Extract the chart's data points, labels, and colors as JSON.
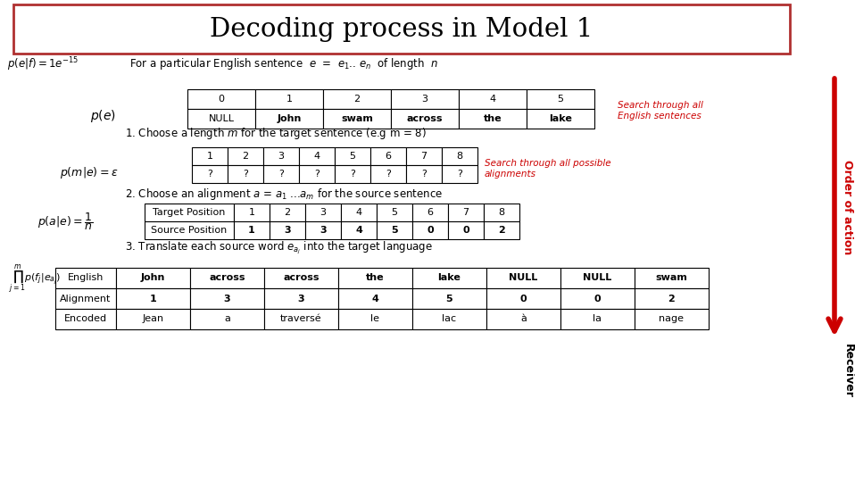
{
  "title": "Decoding process in Model 1",
  "title_border_color": "#b03030",
  "bg_color": "#ffffff",
  "red_color": "#cc0000",
  "table1_header": [
    "0",
    "1",
    "2",
    "3",
    "4",
    "5"
  ],
  "table1_row": [
    "NULL",
    "John",
    "swam",
    "across",
    "the",
    "lake"
  ],
  "table2_header": [
    "1",
    "2",
    "3",
    "4",
    "5",
    "6",
    "7",
    "8"
  ],
  "table2_row": [
    "?",
    "?",
    "?",
    "?",
    "?",
    "?",
    "?",
    "?"
  ],
  "table3_col0": [
    "Target Position",
    "Source Position"
  ],
  "table3_data": [
    [
      "1",
      "2",
      "3",
      "4",
      "5",
      "6",
      "7",
      "8"
    ],
    [
      "1",
      "3",
      "3",
      "4",
      "5",
      "0",
      "0",
      "2"
    ]
  ],
  "table4_headers": [
    "English",
    "John",
    "across",
    "across",
    "the",
    "lake",
    "NULL",
    "NULL",
    "swam"
  ],
  "table4_row2": [
    "Alignment",
    "1",
    "3",
    "3",
    "4",
    "5",
    "0",
    "0",
    "2"
  ],
  "table4_row3": [
    "Encoded",
    "Jean",
    "a",
    "traversé",
    "le",
    "lac",
    "à",
    "la",
    "nage"
  ],
  "text_search1": "Search through all\nEnglish sentences",
  "text_search2": "Search through all possible\nalignments",
  "text_order": "Order of action",
  "text_receiver": "Receiver"
}
